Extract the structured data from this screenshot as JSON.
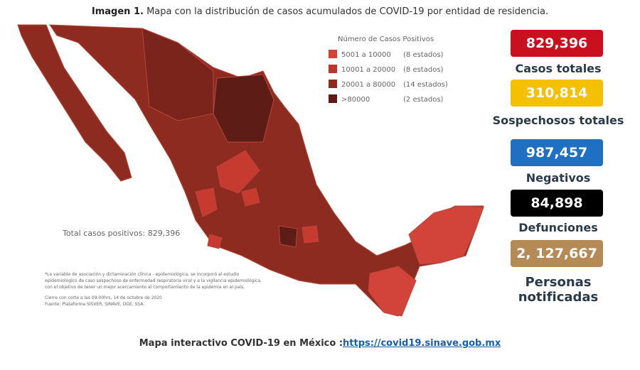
{
  "header": {
    "label": "Imagen 1.",
    "title": "Mapa con la distribución de casos acumulados de COVID-19 por entidad de residencia."
  },
  "legend": {
    "title": "Número de Casos Positivos",
    "items": [
      {
        "range": "5001 a 10000",
        "count": "(8 estados)"
      },
      {
        "range": "10001 a 20000",
        "count": "(8 estados)"
      },
      {
        "range": "20001 a 80000",
        "count": "(14 estados)"
      },
      {
        "range": ">80000",
        "count": "(2 estados)"
      }
    ]
  },
  "map_total": "Total casos positivos: 829,396",
  "footnote": [
    "*La variable de asociación y dictaminación clínica - epidemiológica, se incorporó al estudio",
    "epidemiológico de caso sospechoso de enfermedad respiratoria viral y a la vigilancia epidemiológica,",
    "con el objetivo de tener un mejor acercamiento al comportamiento de la epidemia en el país.",
    "Cierre con corte a las 09:00hrs, 14 de octubre de 2020",
    "Fuente: Plataforma SISVER, SINAVE, DGE, SSA."
  ],
  "stats": [
    {
      "value": "829,396",
      "label": "Casos totales"
    },
    {
      "value": "310,814",
      "label": "Sospechosos totales"
    },
    {
      "value": "987,457",
      "label": "Negativos"
    },
    {
      "value": "84,898",
      "label": "Defunciones"
    },
    {
      "value": "2, 127,667",
      "label": "Personas notificadas"
    }
  ],
  "footer": {
    "text": "Mapa interactivo COVID-19 en México :",
    "link": "https://covid19.sinave.gob.mx"
  }
}
